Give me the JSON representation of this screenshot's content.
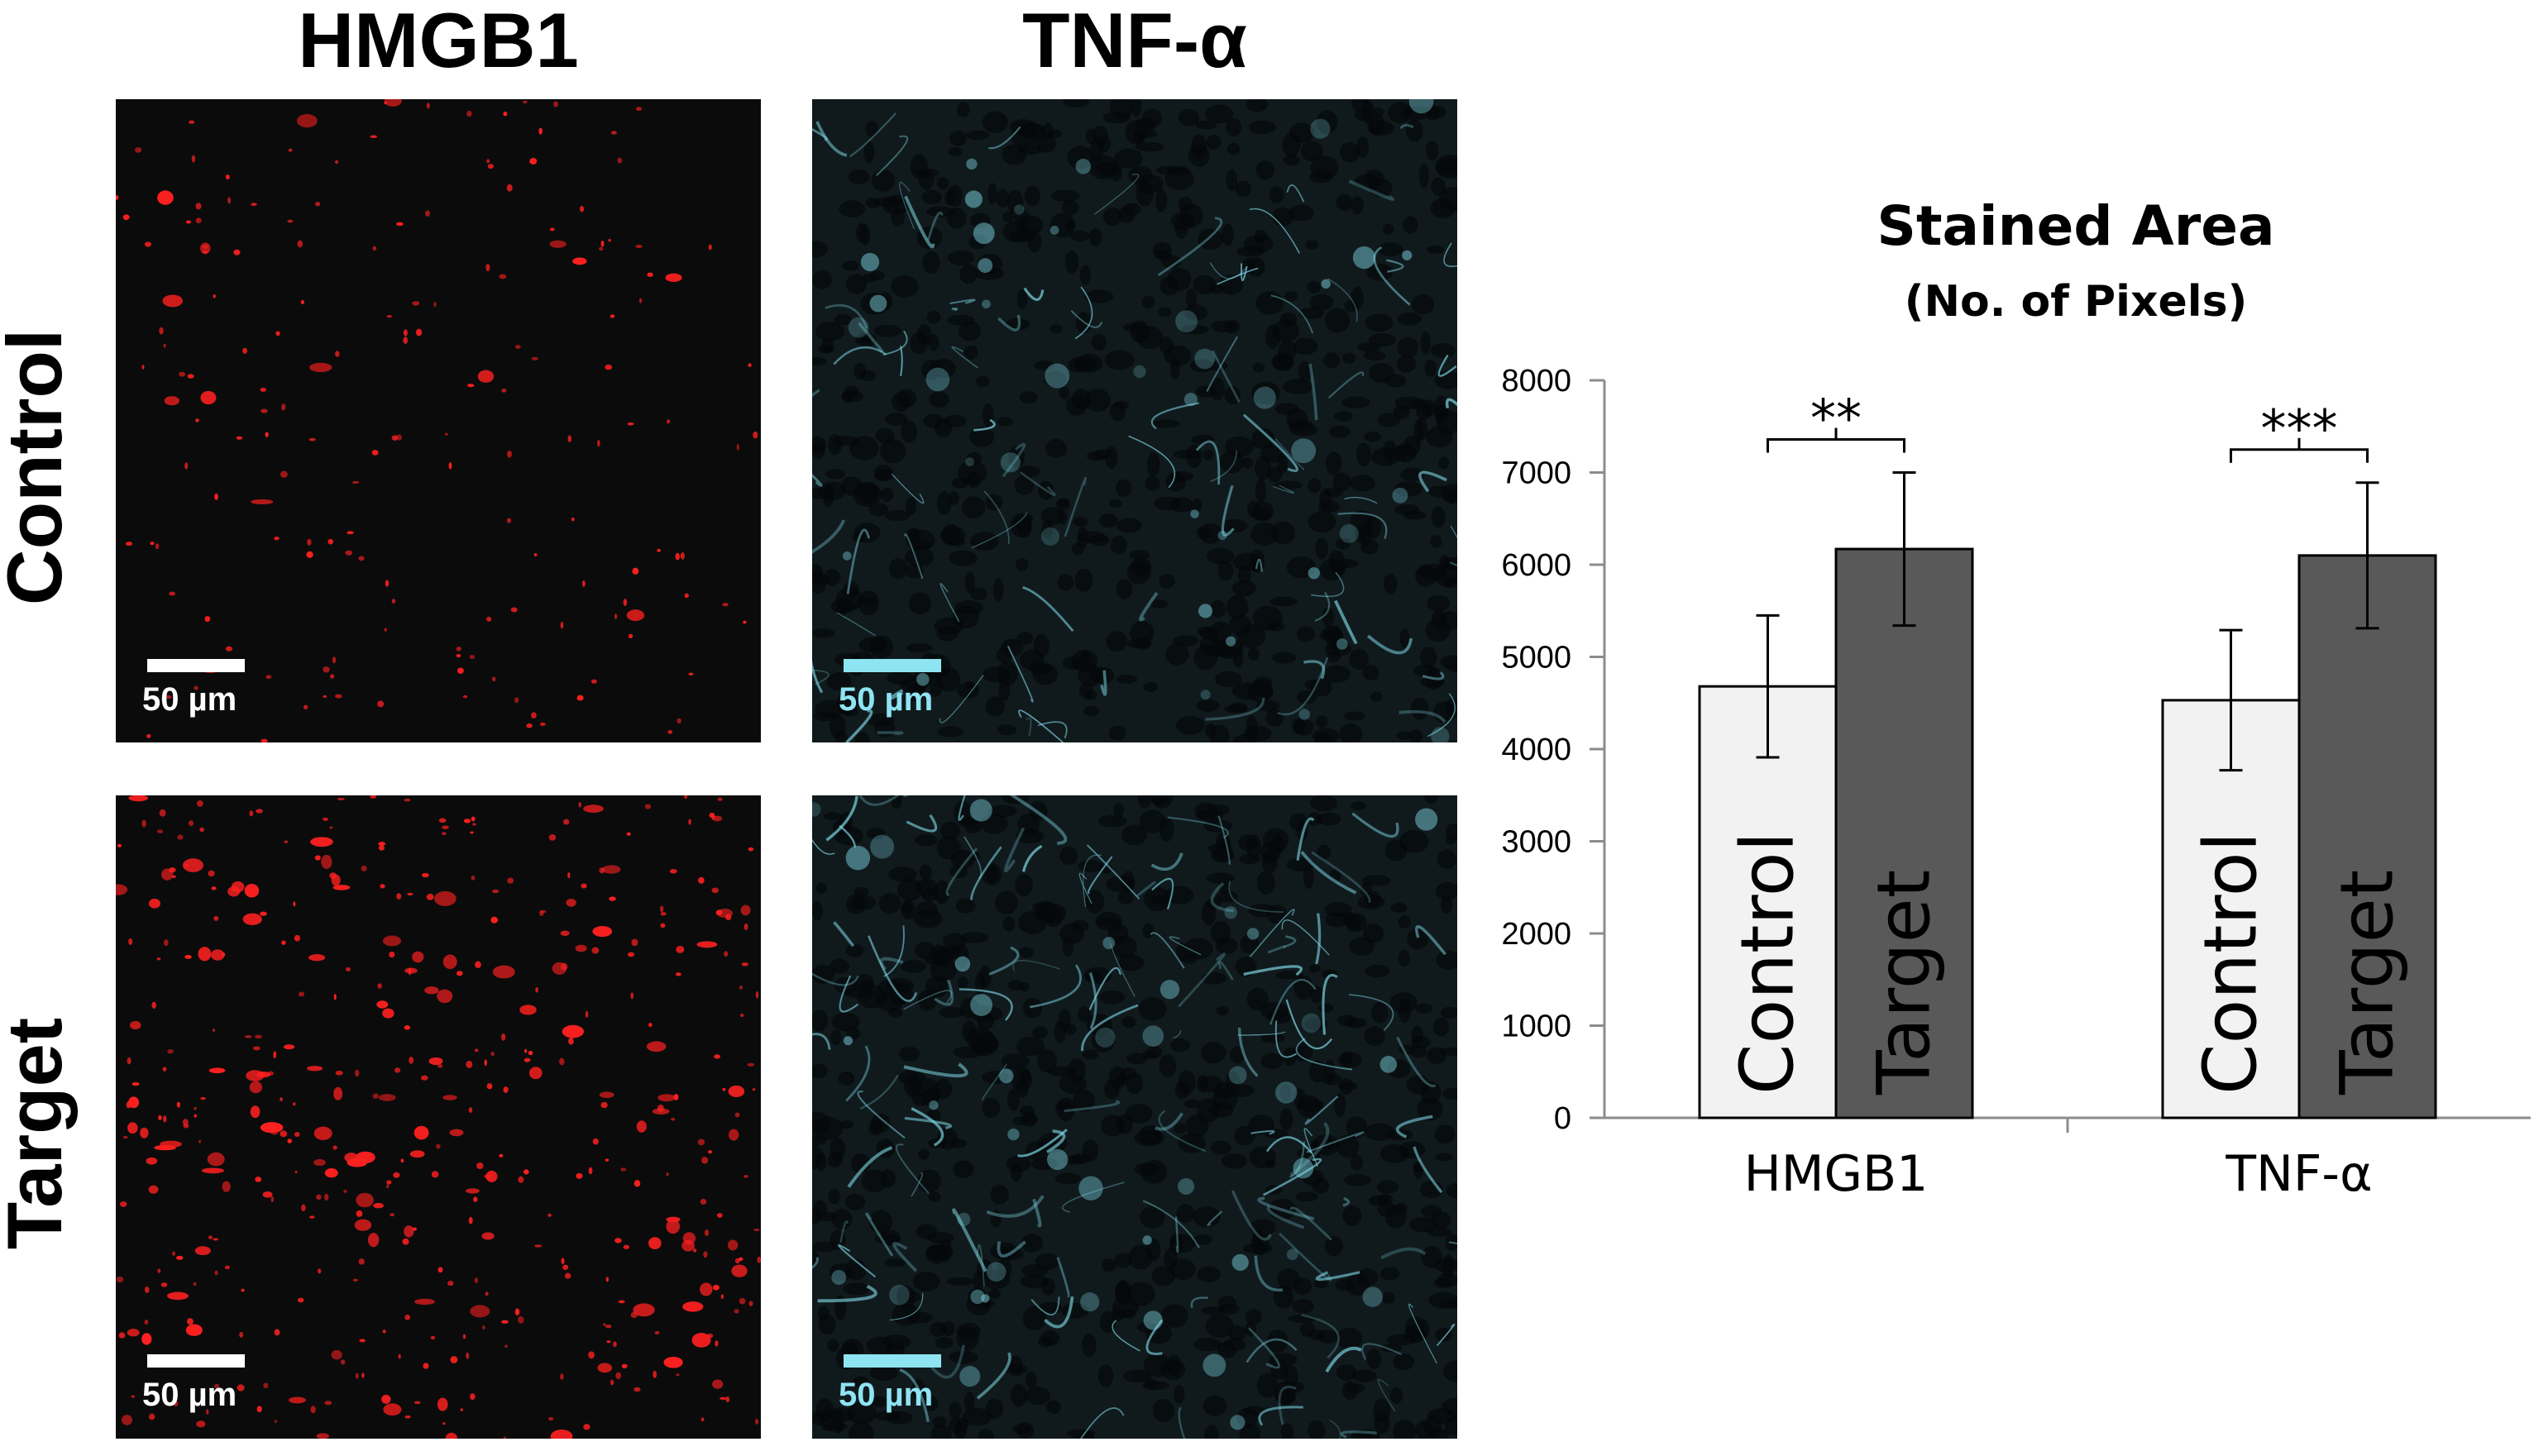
{
  "column_titles": [
    "HMGB1",
    "TNF-α"
  ],
  "row_labels": [
    "Control",
    "Target"
  ],
  "panels": [
    {
      "row": "Control",
      "column": "HMGB1",
      "stain_color": "#ff2020",
      "scale_label": "50 µm",
      "scale_color": "#ffffff"
    },
    {
      "row": "Control",
      "column": "TNF-α",
      "stain_color": "#7fd8e6",
      "scale_label": "50 µm",
      "scale_color": "#8fe4f2"
    },
    {
      "row": "Target",
      "column": "HMGB1",
      "stain_color": "#ff2020",
      "scale_label": "50 µm",
      "scale_color": "#ffffff"
    },
    {
      "row": "Target",
      "column": "TNF-α",
      "stain_color": "#7fd8e6",
      "scale_label": "50 µm",
      "scale_color": "#8fe4f2"
    }
  ],
  "chart_data": {
    "type": "bar",
    "title": "Stained Area",
    "subtitle": "(No. of Pixels)",
    "categories": [
      "HMGB1",
      "TNF-α"
    ],
    "series": [
      {
        "name": "Control",
        "color": "#f2f2f2",
        "values": [
          4680,
          4530
        ],
        "errors": [
          770,
          760
        ]
      },
      {
        "name": "Target",
        "color": "#595959",
        "values": [
          6170,
          6100
        ],
        "errors": [
          830,
          790
        ]
      }
    ],
    "ylim": [
      0,
      8000
    ],
    "yticks": [
      0,
      1000,
      2000,
      3000,
      4000,
      5000,
      6000,
      7000,
      8000
    ],
    "significance": [
      "**",
      "***"
    ],
    "grid": false,
    "legend": "none"
  }
}
